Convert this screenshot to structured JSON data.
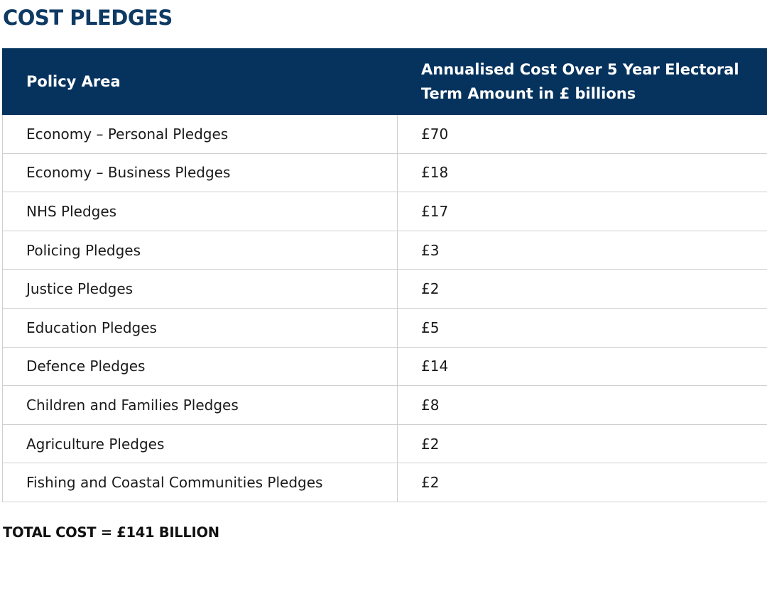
{
  "title": "COST PLEDGES",
  "table": {
    "headers": [
      "Policy Area",
      "Annualised Cost Over 5 Year Electoral Term Amount in £ billions"
    ],
    "rows": [
      {
        "area": "Economy – Personal Pledges",
        "amount": "£70"
      },
      {
        "area": "Economy – Business Pledges",
        "amount": "£18"
      },
      {
        "area": "NHS Pledges",
        "amount": "£17"
      },
      {
        "area": "Policing Pledges",
        "amount": "£3"
      },
      {
        "area": "Justice Pledges",
        "amount": "£2"
      },
      {
        "area": "Education Pledges",
        "amount": "£5"
      },
      {
        "area": "Defence Pledges",
        "amount": "£14"
      },
      {
        "area": "Children and Families Pledges",
        "amount": "£8"
      },
      {
        "area": "Agriculture Pledges",
        "amount": "£2"
      },
      {
        "area": "Fishing and Coastal Communities Pledges",
        "amount": "£2"
      }
    ]
  },
  "total": "TOTAL COST = £141 BILLION",
  "colors": {
    "title": "#0e3a64",
    "header_background": "#06335d",
    "header_text": "#ffffff",
    "border": "#cfcfcf"
  }
}
